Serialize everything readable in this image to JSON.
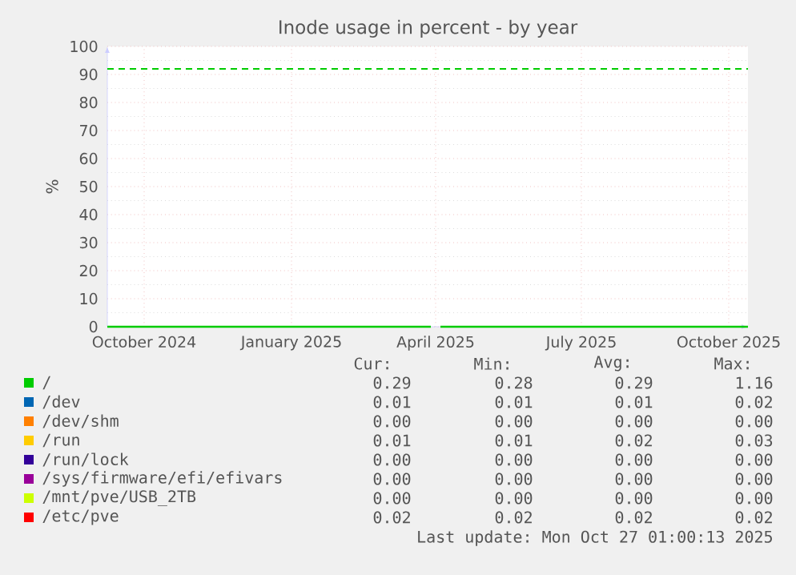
{
  "chart_data": {
    "type": "line",
    "title": "Inode usage in percent - by year",
    "ylabel": "%",
    "x": [
      "2024-09-08",
      "2025-03-29",
      "2025-04-01",
      "2025-04-04",
      "2025-10-13"
    ],
    "series": [
      {
        "name": "/",
        "color": "#00cc00",
        "values": [
          0,
          0,
          null,
          0,
          0
        ]
      },
      {
        "name": "/dev",
        "color": "#0066b3",
        "values": [
          null,
          null,
          null,
          null,
          null
        ]
      },
      {
        "name": "/dev/shm",
        "color": "#ff8000",
        "values": [
          null,
          null,
          null,
          null,
          null
        ]
      },
      {
        "name": "/run",
        "color": "#ffcc00",
        "values": [
          null,
          null,
          null,
          null,
          null
        ]
      },
      {
        "name": "/run/lock",
        "color": "#330099",
        "values": [
          null,
          null,
          null,
          null,
          null
        ]
      },
      {
        "name": "/sys/firmware/efi/efivars",
        "color": "#990099",
        "values": [
          null,
          null,
          null,
          null,
          null
        ]
      },
      {
        "name": "/mnt/pve/USB_2TB",
        "color": "#ccff00",
        "values": [
          null,
          null,
          null,
          null,
          null
        ]
      },
      {
        "name": "/etc/pve",
        "color": "#ff0000",
        "values": [
          null,
          null,
          null,
          null,
          null
        ]
      }
    ],
    "xlim": [
      "2024-09-08",
      "2025-10-13"
    ],
    "xticks": [
      {
        "value": "2024-10-01",
        "label": "October 2024"
      },
      {
        "value": "2025-01-01",
        "label": "January 2025"
      },
      {
        "value": "2025-04-01",
        "label": "April 2025"
      },
      {
        "value": "2025-07-01",
        "label": "July 2025"
      },
      {
        "value": "2025-10-01",
        "label": "October 2025"
      }
    ],
    "ylim": [
      0,
      100
    ],
    "yticks": [
      0,
      10,
      20,
      30,
      40,
      50,
      60,
      70,
      80,
      90,
      100
    ],
    "ref_lines": [
      {
        "axis": "y",
        "value": 92,
        "color": "#00cc00",
        "line_style": "dashed"
      }
    ],
    "grid": true,
    "legend": "bottom",
    "annotations": [
      "Cur:",
      "Min:",
      "Avg:",
      "Max:",
      "0.29",
      "0.28",
      "0.29",
      "1.16",
      "0.01",
      "0.01",
      "0.01",
      "0.02",
      "0.00",
      "0.00",
      "0.00",
      "0.00",
      "0.01",
      "0.01",
      "0.02",
      "0.03",
      "0.00",
      "0.00",
      "0.00",
      "0.00",
      "0.00",
      "0.00",
      "0.00",
      "0.00",
      "0.00",
      "0.00",
      "0.00",
      "0.00",
      "0.02",
      "0.02",
      "0.02",
      "0.02",
      "Last update: Mon Oct 27 01:00:13 2025"
    ]
  }
}
